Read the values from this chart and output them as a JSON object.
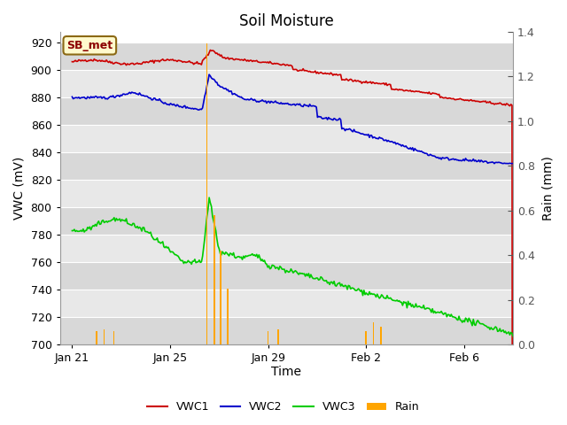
{
  "title": "Soil Moisture",
  "xlabel": "Time",
  "ylabel_left": "VWC (mV)",
  "ylabel_right": "Rain (mm)",
  "ylim_left": [
    700,
    928
  ],
  "ylim_right": [
    0.0,
    1.4
  ],
  "yticks_left": [
    700,
    720,
    740,
    760,
    780,
    800,
    820,
    840,
    860,
    880,
    900,
    920
  ],
  "yticks_right": [
    0.0,
    0.2,
    0.4,
    0.6,
    0.8,
    1.0,
    1.2,
    1.4
  ],
  "xtick_labels": [
    "Jan 21",
    "Jan 25",
    "Jan 29",
    "Feb 2",
    "Feb 6"
  ],
  "xtick_positions": [
    0,
    4,
    8,
    12,
    16
  ],
  "xlim": [
    -0.5,
    18.0
  ],
  "fig_bg_color": "#ffffff",
  "band_colors": [
    "#d8d8d8",
    "#e8e8e8"
  ],
  "label_box_facecolor": "#fffacd",
  "label_box_edgecolor": "#8B6914",
  "label_text": "SB_met",
  "label_text_color": "#8B0000",
  "vwc1_color": "#cc0000",
  "vwc2_color": "#0000cc",
  "vwc3_color": "#00cc00",
  "rain_color": "#FFA500",
  "right_tick_color": "#555555",
  "axis_line_color": "#999999"
}
